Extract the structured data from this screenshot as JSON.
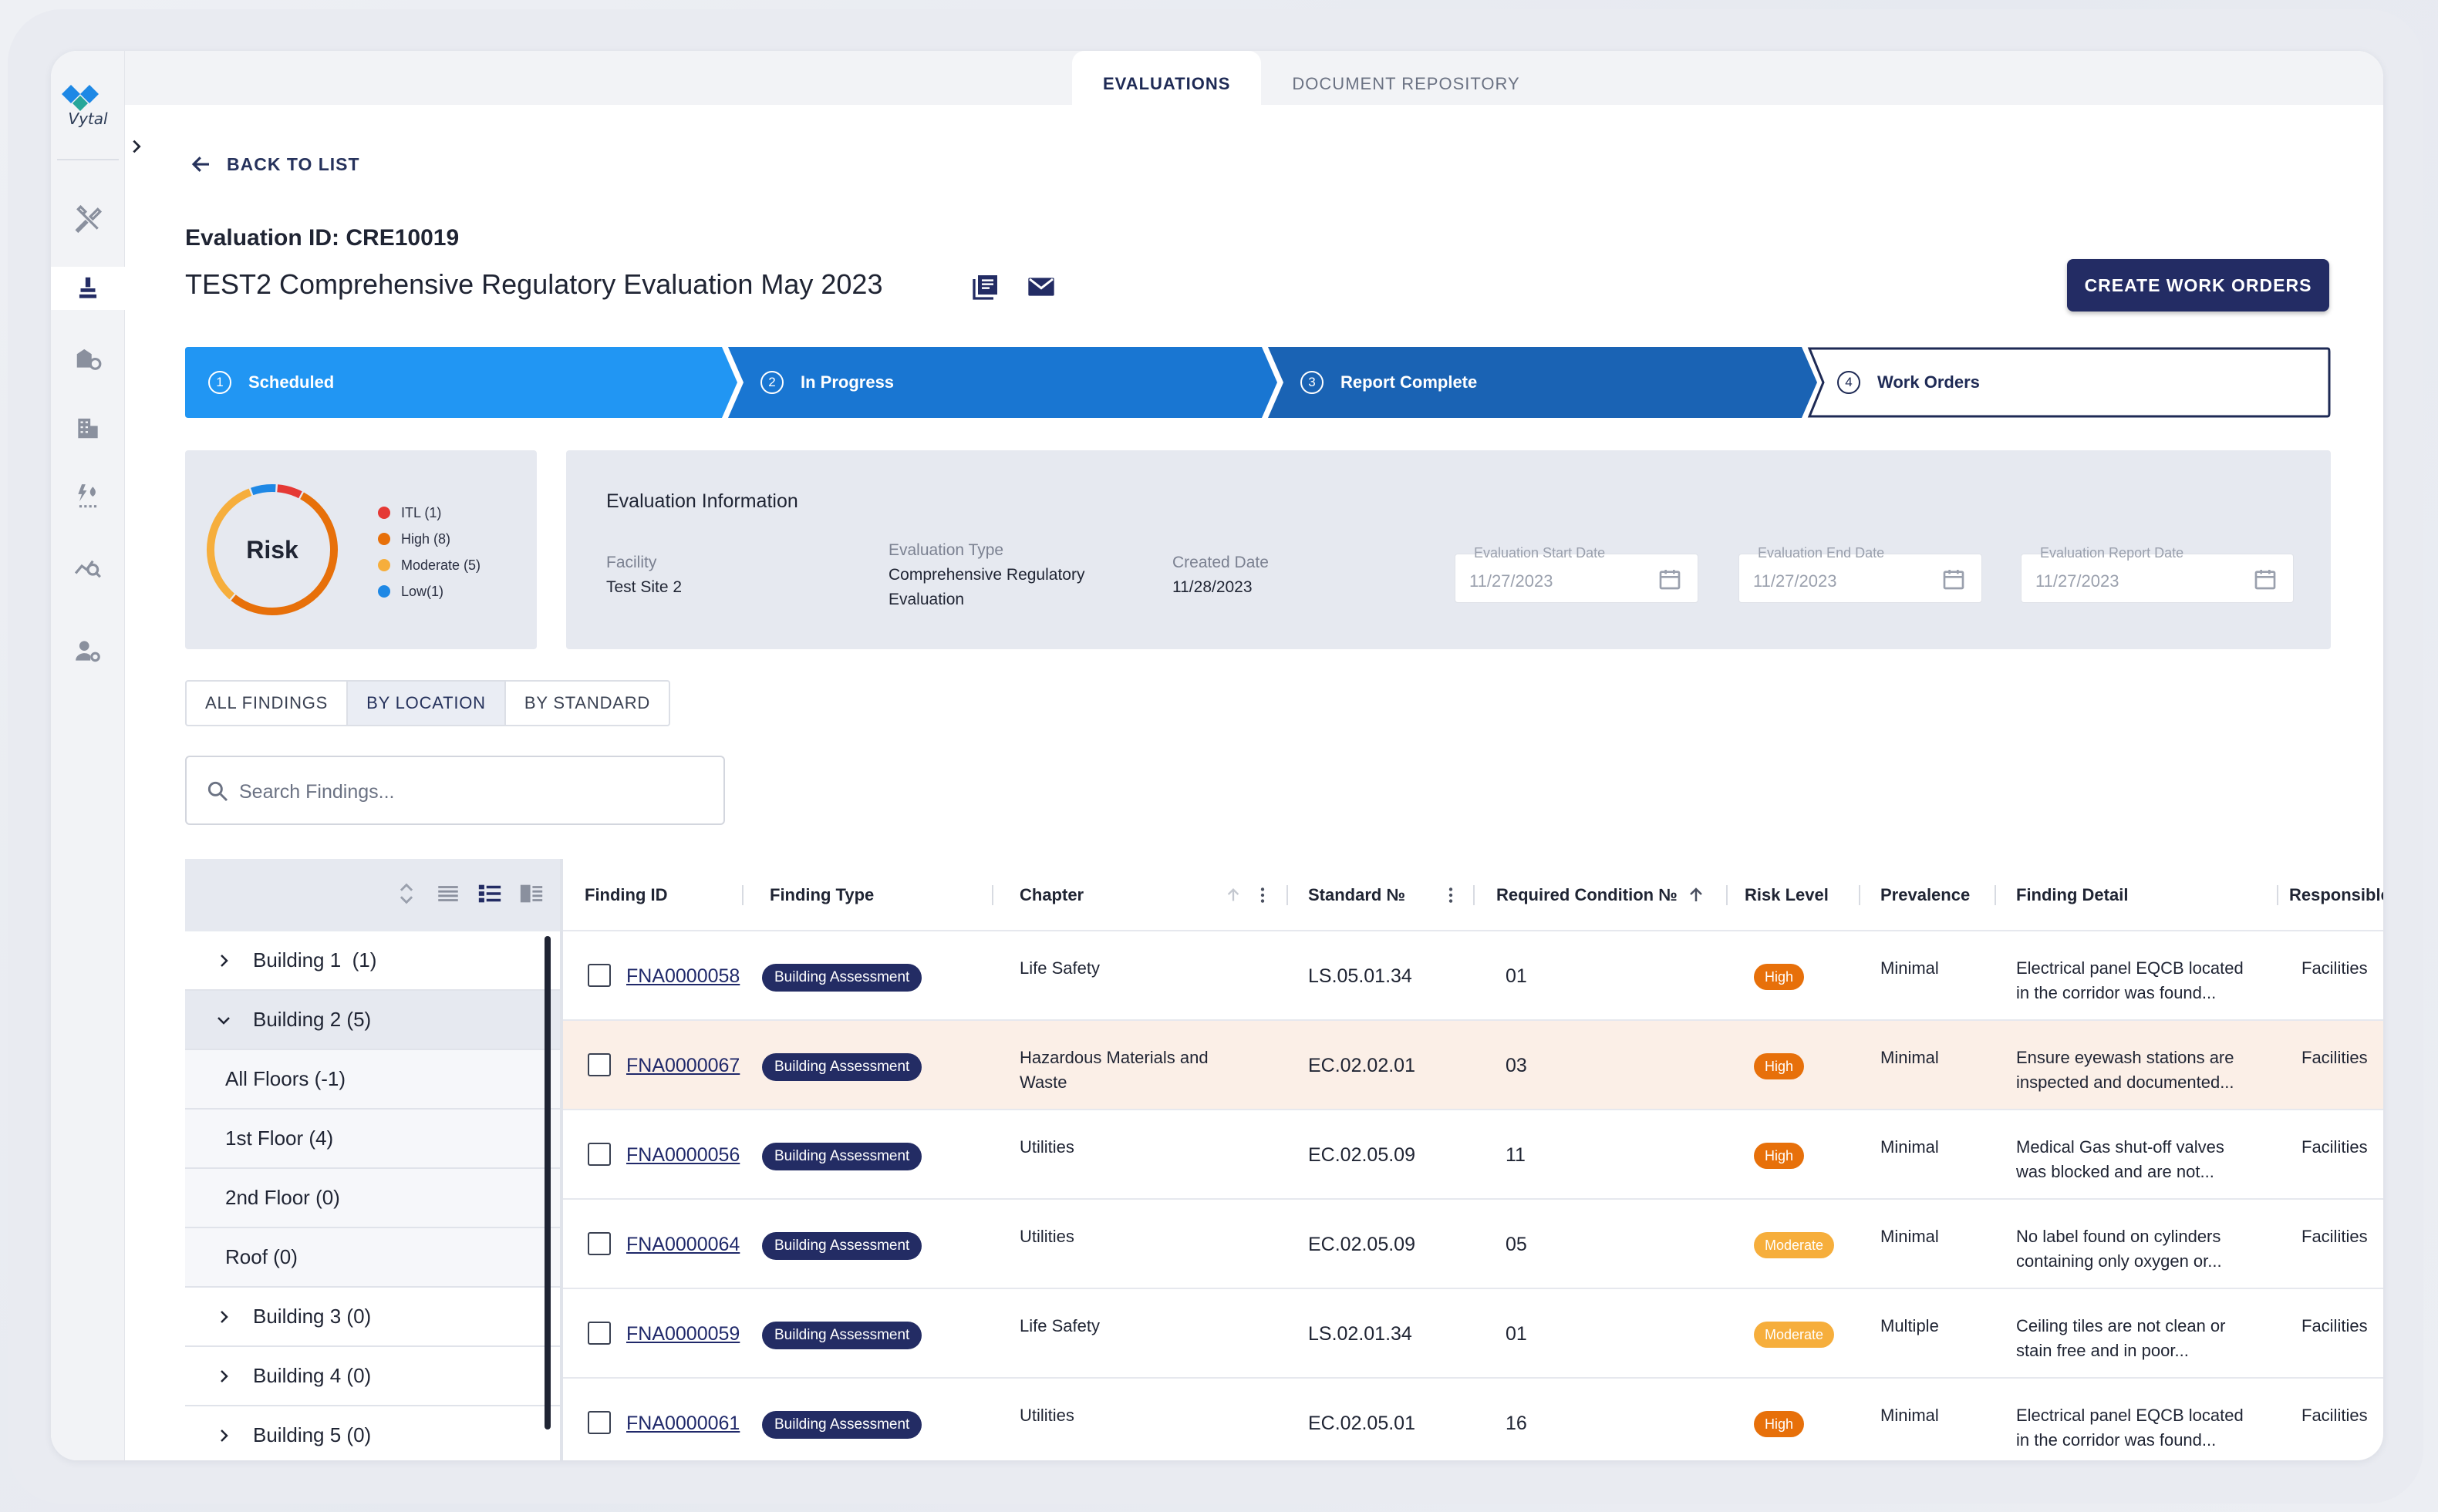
{
  "app": {
    "logo_text": "Vytal"
  },
  "top_tabs": [
    {
      "label": "EVALUATIONS",
      "active": true
    },
    {
      "label": "DOCUMENT REPOSITORY",
      "active": false
    }
  ],
  "sidebar": {
    "icons": [
      "tools-icon",
      "stamp-icon",
      "building-tag-icon",
      "building-icon",
      "energy-icon",
      "analytics-search-icon",
      "user-settings-icon"
    ]
  },
  "header": {
    "back_label": "BACK TO LIST",
    "evaluation_id": "Evaluation ID: CRE10019",
    "title": "TEST2 Comprehensive Regulatory Evaluation May 2023",
    "create_button": "CREATE WORK ORDERS"
  },
  "stepper": [
    {
      "num": "1",
      "label": "Scheduled",
      "color": "#2196f3"
    },
    {
      "num": "2",
      "label": "In Progress",
      "color": "#1976d2"
    },
    {
      "num": "3",
      "label": "Report Complete",
      "color": "#1a63b4"
    },
    {
      "num": "4",
      "label": "Work Orders",
      "color": "#ffffff"
    }
  ],
  "risk": {
    "label": "Risk",
    "legend": [
      {
        "label": "ITL (1)",
        "color": "#e53935",
        "count": 1
      },
      {
        "label": "High (8)",
        "color": "#e7700a",
        "count": 8
      },
      {
        "label": "Moderate (5)",
        "color": "#f6ae3c",
        "count": 5
      },
      {
        "label": "Low(1)",
        "color": "#1e88e5",
        "count": 1
      }
    ]
  },
  "evaluation_info": {
    "title": "Evaluation Information",
    "facility_label": "Facility",
    "facility_value": "Test Site 2",
    "type_label": "Evaluation Type",
    "type_value": "Comprehensive Regulatory Evaluation",
    "created_label": "Created Date",
    "created_value": "11/28/2023",
    "start_label": "Evaluation Start Date",
    "start_value": "11/27/2023",
    "end_label": "Evaluation End Date",
    "end_value": "11/27/2023",
    "report_label": "Evaluation Report Date",
    "report_value": "11/27/2023"
  },
  "view_tabs": [
    {
      "label": "ALL FINDINGS",
      "active": false
    },
    {
      "label": "BY LOCATION",
      "active": true
    },
    {
      "label": "BY STANDARD",
      "active": false
    }
  ],
  "search": {
    "placeholder": "Search Findings..."
  },
  "tree": [
    {
      "label": "Building 1  (1)",
      "level": 0,
      "expanded": false
    },
    {
      "label": "Building 2 (5)",
      "level": 0,
      "expanded": true
    },
    {
      "label": "All Floors (-1)",
      "level": 1
    },
    {
      "label": "1st Floor (4)",
      "level": 1
    },
    {
      "label": "2nd Floor (0)",
      "level": 1
    },
    {
      "label": "Roof (0)",
      "level": 1
    },
    {
      "label": "Building 3 (0)",
      "level": 0,
      "expanded": false
    },
    {
      "label": "Building 4 (0)",
      "level": 0,
      "expanded": false
    },
    {
      "label": "Building 5 (0)",
      "level": 0,
      "expanded": false
    }
  ],
  "table": {
    "columns": [
      "Finding ID",
      "Finding Type",
      "Chapter",
      "Standard №",
      "Required Condition №",
      "Risk Level",
      "Prevalence",
      "Finding Detail",
      "Responsible Par"
    ],
    "rows": [
      {
        "id": "FNA0000058",
        "type": "Building Assessment",
        "chapter": "Life Safety",
        "standard": "LS.05.01.34",
        "condition": "01",
        "risk": "High",
        "prevalence": "Minimal",
        "detail1": "Electrical panel EQCB located",
        "detail2": "in the corridor was found...",
        "responsible": "Facilities"
      },
      {
        "id": "FNA0000067",
        "type": "Building Assessment",
        "chapter": "Hazardous Materials and Waste",
        "standard": "EC.02.02.01",
        "condition": "03",
        "risk": "High",
        "prevalence": "Minimal",
        "detail1": "Ensure eyewash stations are",
        "detail2": "inspected and documented...",
        "responsible": "Facilities",
        "highlight": true
      },
      {
        "id": "FNA0000056",
        "type": "Building Assessment",
        "chapter": "Utilities",
        "standard": "EC.02.05.09",
        "condition": "11",
        "risk": "High",
        "prevalence": "Minimal",
        "detail1": "Medical Gas shut-off valves",
        "detail2": "was blocked and are not...",
        "responsible": "Facilities"
      },
      {
        "id": "FNA0000064",
        "type": "Building Assessment",
        "chapter": "Utilities",
        "standard": "EC.02.05.09",
        "condition": "05",
        "risk": "Moderate",
        "prevalence": "Minimal",
        "detail1": "No label found on cylinders",
        "detail2": "containing only oxygen or...",
        "responsible": "Facilities"
      },
      {
        "id": "FNA0000059",
        "type": "Building Assessment",
        "chapter": "Life Safety",
        "standard": "LS.02.01.34",
        "condition": "01",
        "risk": "Moderate",
        "prevalence": "Multiple",
        "detail1": "Ceiling tiles are not clean or",
        "detail2": "stain free and in poor...",
        "responsible": "Facilities"
      },
      {
        "id": "FNA0000061",
        "type": "Building Assessment",
        "chapter": "Utilities",
        "standard": "EC.02.05.01",
        "condition": "16",
        "risk": "High",
        "prevalence": "Minimal",
        "detail1": "Electrical panel EQCB located",
        "detail2": "in the corridor was found...",
        "responsible": "Facilities"
      }
    ]
  }
}
